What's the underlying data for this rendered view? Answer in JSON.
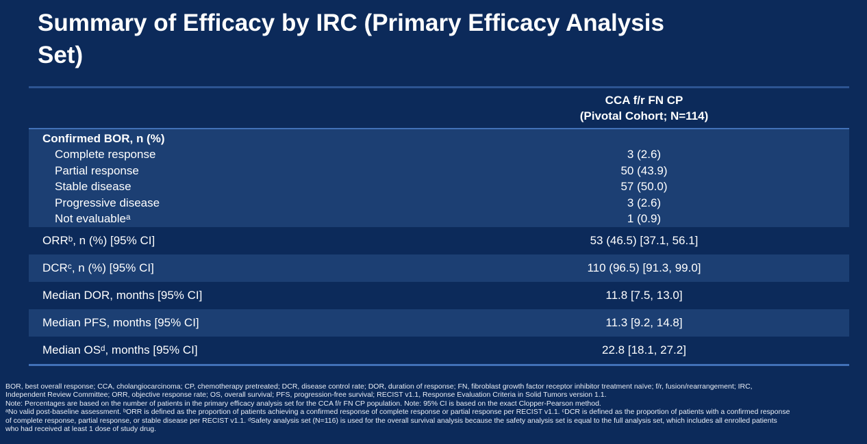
{
  "title": {
    "line1": "Summary of Efficacy by IRC (Primary Efficacy Analysis",
    "line2": "Set)"
  },
  "table": {
    "column_header": {
      "line1": "CCA f/r FN CP",
      "line2": "(Pivotal Cohort; N=114)"
    },
    "bor_group": {
      "header": "Confirmed BOR, n (%)",
      "rows": [
        {
          "label": "Complete response",
          "value": "3 (2.6)"
        },
        {
          "label": "Partial response",
          "value": "50 (43.9)"
        },
        {
          "label": "Stable disease",
          "value": "57 (50.0)"
        },
        {
          "label": "Progressive disease",
          "value": "3 (2.6)"
        },
        {
          "label": "Not evaluableᵃ",
          "value": "1 (0.9)"
        }
      ]
    },
    "rows": [
      {
        "label": "ORRᵇ, n (%) [95% CI]",
        "value": "53 (46.5) [37.1, 56.1]"
      },
      {
        "label": "DCRᶜ, n (%) [95% CI]",
        "value": "110 (96.5) [91.3, 99.0]"
      },
      {
        "label": "Median DOR, months [95% CI]",
        "value": "11.8 [7.5, 13.0]"
      },
      {
        "label": "Median PFS, months [95% CI]",
        "value": "11.3 [9.2, 14.8]"
      },
      {
        "label": "Median OSᵈ, months [95% CI]",
        "value": "22.8 [18.1, 27.2]"
      }
    ]
  },
  "footnotes": {
    "lines": [
      "BOR, best overall response; CCA, cholangiocarcinoma; CP, chemotherapy pretreated; DCR, disease control rate; DOR, duration of response; FN, fibroblast growth factor receptor inhibitor treatment naïve; f/r, fusion/rearrangement; IRC,",
      "Independent Review Committee; ORR, objective response rate; OS, overall survival; PFS, progression-free survival; RECIST v1.1, Response Evaluation Criteria in Solid Tumors version 1.1.",
      "Note: Percentages are based on the number of patients in the primary efficacy analysis set for the CCA f/r FN CP population. Note: 95% CI is based on the exact Clopper-Pearson method.",
      "ᵃNo valid post-baseline assessment. ᵇORR is defined as the proportion of patients achieving a confirmed response of complete response or partial response per RECIST v1.1. ᶜDCR is defined as the proportion of patients with a confirmed response",
      "of complete response, partial response, or stable disease per RECIST v1.1. ᵈSafety analysis set (N=116) is used for the overall survival analysis because the safety analysis set is equal to the full analysis set, which includes all enrolled patients",
      "who had received at least 1 dose of study drug."
    ]
  },
  "colors": {
    "background": "#0c2a5a",
    "row_stripe": "#1c3f73",
    "rule_top": "#2d5492",
    "rule_accent": "#4271b8",
    "text": "#ffffff"
  }
}
